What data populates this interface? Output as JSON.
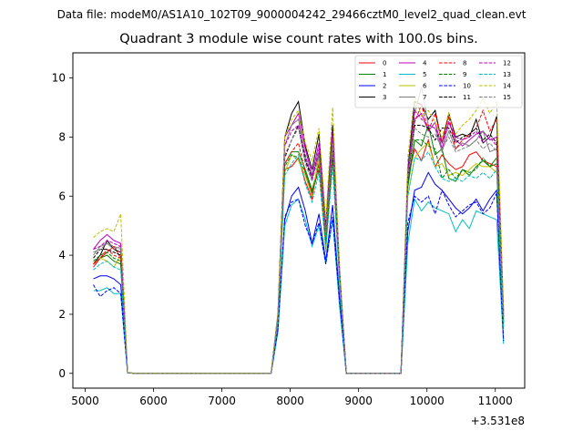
{
  "figure": {
    "suptitle": "Data file: modeM0/AS1A10_102T09_9000004242_29466cztM0_level2_quad_clean.evt"
  },
  "chart_data": {
    "type": "line",
    "title": "Quadrant 3 module wise count rates with 100.0s bins.",
    "xlabel": "",
    "ylabel": "",
    "x_offset_text": "+3.531e8",
    "xlim": [
      4820,
      11430
    ],
    "ylim": [
      -0.5,
      10.85
    ],
    "xticks": [
      5000,
      6000,
      7000,
      8000,
      9000,
      10000,
      11000
    ],
    "xtick_labels": [
      "5000",
      "6000",
      "7000",
      "8000",
      "9000",
      "10000",
      "11000"
    ],
    "yticks": [
      0,
      2,
      4,
      6,
      8,
      10
    ],
    "ytick_labels": [
      "0",
      "2",
      "4",
      "6",
      "8",
      "10"
    ],
    "grid": false,
    "legend_position": "top-right",
    "legend_columns": 4,
    "x": [
      5120,
      5220,
      5320,
      5420,
      5520,
      5620,
      5720,
      7720,
      7820,
      7920,
      8020,
      8120,
      8220,
      8320,
      8420,
      8520,
      8620,
      8720,
      8820,
      9620,
      9720,
      9820,
      9920,
      10020,
      10120,
      10220,
      10320,
      10420,
      10520,
      10620,
      10720,
      10820,
      10920,
      11020,
      11120
    ],
    "series": [
      {
        "name": "0",
        "color": "#ff0000",
        "dash": "solid",
        "values": [
          3.6,
          3.9,
          4.1,
          4.3,
          3.9,
          0.02,
          0,
          0,
          1.8,
          6.9,
          7.0,
          7.3,
          6.5,
          5.9,
          7.4,
          4.3,
          7.7,
          3.2,
          0,
          0,
          6.6,
          7.6,
          7.2,
          7.9,
          7.0,
          7.4,
          7.1,
          6.9,
          7.0,
          7.4,
          7.5,
          7.2,
          7.1,
          7.0,
          1.6
        ]
      },
      {
        "name": "1",
        "color": "#008000",
        "dash": "solid",
        "values": [
          3.7,
          3.9,
          4.0,
          3.8,
          3.7,
          0.03,
          0,
          0,
          1.9,
          7.1,
          7.5,
          7.5,
          6.9,
          6.2,
          7.1,
          4.4,
          7.4,
          3.3,
          0,
          0,
          6.3,
          7.9,
          7.7,
          8.4,
          7.4,
          7.6,
          6.6,
          6.5,
          6.9,
          6.7,
          7.0,
          7.2,
          7.0,
          7.3,
          1.7
        ]
      },
      {
        "name": "2",
        "color": "#0000ff",
        "dash": "solid",
        "values": [
          3.2,
          3.3,
          3.3,
          3.2,
          3.0,
          0.02,
          0,
          0,
          1.5,
          5.2,
          6.0,
          6.3,
          5.5,
          4.4,
          5.4,
          3.8,
          5.7,
          2.6,
          0,
          0,
          4.8,
          6.2,
          6.3,
          6.8,
          6.4,
          6.2,
          5.9,
          5.6,
          5.4,
          5.6,
          5.9,
          5.5,
          5.9,
          6.2,
          1.1
        ]
      },
      {
        "name": "3",
        "color": "#000000",
        "dash": "solid",
        "values": [
          3.7,
          4.0,
          4.5,
          4.2,
          4.1,
          0.03,
          0,
          0,
          2.0,
          8.0,
          8.8,
          9.2,
          7.7,
          6.9,
          8.1,
          5.0,
          8.4,
          3.6,
          0,
          0,
          6.9,
          9.2,
          9.1,
          8.6,
          8.9,
          7.8,
          8.8,
          8.0,
          8.1,
          8.0,
          8.6,
          7.8,
          8.0,
          8.7,
          2.1
        ]
      },
      {
        "name": "4",
        "color": "#bf00bf",
        "dash": "solid",
        "values": [
          4.2,
          4.5,
          4.7,
          4.5,
          4.4,
          0.03,
          0,
          0,
          2.0,
          8.0,
          8.4,
          8.8,
          7.6,
          6.7,
          7.8,
          4.8,
          8.2,
          3.5,
          0,
          0,
          6.8,
          8.6,
          8.8,
          8.2,
          8.5,
          7.6,
          8.5,
          7.9,
          7.7,
          7.9,
          8.1,
          8.2,
          7.9,
          8.0,
          2.0
        ]
      },
      {
        "name": "5",
        "color": "#00bfbf",
        "dash": "solid",
        "values": [
          2.8,
          2.8,
          2.9,
          2.7,
          2.7,
          0.02,
          0,
          0,
          1.4,
          5.0,
          5.7,
          5.9,
          5.2,
          4.3,
          5.0,
          3.7,
          5.2,
          2.3,
          0,
          0,
          4.4,
          5.9,
          5.5,
          5.8,
          5.6,
          5.5,
          5.4,
          4.8,
          5.2,
          4.9,
          5.5,
          5.4,
          5.3,
          5.2,
          1.0
        ]
      },
      {
        "name": "6",
        "color": "#bfbf00",
        "dash": "solid",
        "values": [
          3.7,
          3.9,
          3.8,
          3.6,
          4.0,
          0.02,
          0,
          0,
          1.8,
          6.8,
          7.4,
          7.2,
          6.7,
          6.0,
          7.3,
          4.1,
          7.5,
          3.2,
          0,
          0,
          6.0,
          7.3,
          7.6,
          7.8,
          7.0,
          7.1,
          6.7,
          6.8,
          6.7,
          6.9,
          7.1,
          7.0,
          7.0,
          6.8,
          1.5
        ]
      },
      {
        "name": "7",
        "color": "#7f7f7f",
        "dash": "solid",
        "values": [
          4.0,
          4.3,
          4.4,
          4.2,
          4.3,
          0.03,
          0,
          0,
          2.0,
          7.7,
          8.4,
          8.6,
          7.3,
          6.6,
          7.5,
          4.8,
          7.9,
          3.5,
          0,
          0,
          6.6,
          8.8,
          9.7,
          8.4,
          8.3,
          7.5,
          8.2,
          7.6,
          7.8,
          7.7,
          7.9,
          8.2,
          7.5,
          7.6,
          1.9
        ]
      },
      {
        "name": "8",
        "color": "#ff0000",
        "dash": "dashed",
        "values": [
          3.7,
          3.9,
          4.2,
          4.0,
          3.9,
          0.02,
          0,
          0,
          1.9,
          7.1,
          7.5,
          7.8,
          6.8,
          6.1,
          7.0,
          4.4,
          7.3,
          3.3,
          0,
          0,
          6.5,
          8.5,
          9.1,
          8.2,
          8.8,
          7.8,
          8.7,
          7.6,
          7.9,
          8.1,
          8.3,
          8.9,
          8.2,
          8.6,
          1.8
        ]
      },
      {
        "name": "9",
        "color": "#008000",
        "dash": "dashed",
        "values": [
          3.8,
          4.0,
          4.1,
          3.9,
          3.8,
          0.02,
          0,
          0,
          1.9,
          7.0,
          7.4,
          7.3,
          6.8,
          6.1,
          6.9,
          4.4,
          7.3,
          3.3,
          0,
          0,
          6.5,
          7.9,
          7.9,
          7.7,
          7.6,
          6.6,
          6.9,
          6.6,
          6.9,
          6.8,
          6.9,
          7.3,
          7.0,
          7.1,
          1.7
        ]
      },
      {
        "name": "10",
        "color": "#0000ff",
        "dash": "dashed",
        "values": [
          3.0,
          2.6,
          2.8,
          2.9,
          2.7,
          0.02,
          0,
          0,
          1.5,
          5.3,
          5.8,
          5.9,
          5.0,
          4.4,
          5.1,
          3.7,
          5.3,
          2.5,
          0,
          0,
          5.1,
          6.0,
          5.8,
          6.0,
          5.4,
          6.2,
          5.7,
          5.3,
          5.5,
          5.7,
          5.8,
          5.4,
          5.6,
          6.1,
          1.1
        ]
      },
      {
        "name": "11",
        "color": "#000000",
        "dash": "dashed",
        "values": [
          3.9,
          4.2,
          4.2,
          4.1,
          4.0,
          0.03,
          0,
          0,
          1.9,
          7.3,
          7.9,
          8.4,
          7.2,
          6.6,
          7.4,
          4.7,
          7.7,
          3.4,
          0,
          0,
          6.5,
          8.4,
          8.4,
          8.3,
          7.9,
          8.3,
          8.3,
          7.8,
          8.0,
          8.1,
          8.3,
          7.9,
          8.1,
          7.8,
          1.9
        ]
      },
      {
        "name": "12",
        "color": "#bf00bf",
        "dash": "dashed",
        "values": [
          4.2,
          4.3,
          4.5,
          4.4,
          4.3,
          0.03,
          0,
          0,
          2.0,
          7.7,
          8.2,
          8.4,
          7.4,
          6.6,
          7.6,
          4.8,
          7.9,
          3.5,
          0,
          0,
          6.8,
          8.9,
          8.6,
          8.4,
          8.3,
          7.8,
          8.5,
          8.0,
          7.9,
          8.0,
          8.2,
          7.8,
          8.0,
          7.7,
          1.9
        ]
      },
      {
        "name": "13",
        "color": "#00bfbf",
        "dash": "dashed",
        "values": [
          3.5,
          3.7,
          3.8,
          3.6,
          3.5,
          0.02,
          0,
          0,
          1.8,
          6.7,
          7.1,
          7.4,
          6.4,
          5.8,
          6.8,
          4.2,
          7.0,
          3.1,
          0,
          0,
          6.0,
          7.3,
          7.2,
          7.5,
          7.0,
          6.6,
          6.5,
          6.6,
          6.5,
          6.7,
          6.6,
          6.8,
          6.6,
          6.9,
          1.5
        ]
      },
      {
        "name": "14",
        "color": "#bfbf00",
        "dash": "dashed",
        "values": [
          4.6,
          4.8,
          4.9,
          4.8,
          5.4,
          0.04,
          0,
          0,
          2.1,
          8.0,
          8.6,
          8.9,
          7.8,
          7.2,
          8.3,
          5.2,
          9.0,
          3.7,
          0,
          0,
          7.3,
          9.4,
          8.7,
          8.9,
          8.5,
          8.0,
          8.8,
          8.1,
          8.4,
          8.6,
          8.9,
          9.3,
          8.8,
          9.2,
          2.2
        ]
      },
      {
        "name": "15",
        "color": "#7f7f7f",
        "dash": "dashed",
        "values": [
          4.1,
          4.2,
          4.4,
          4.3,
          4.2,
          0.03,
          0,
          0,
          2.0,
          7.4,
          7.9,
          8.3,
          7.1,
          6.5,
          7.4,
          4.7,
          7.8,
          3.4,
          0,
          0,
          6.6,
          8.3,
          8.1,
          8.0,
          8.1,
          7.6,
          8.0,
          7.5,
          7.6,
          7.7,
          7.9,
          7.6,
          7.8,
          7.5,
          1.9
        ]
      }
    ]
  }
}
